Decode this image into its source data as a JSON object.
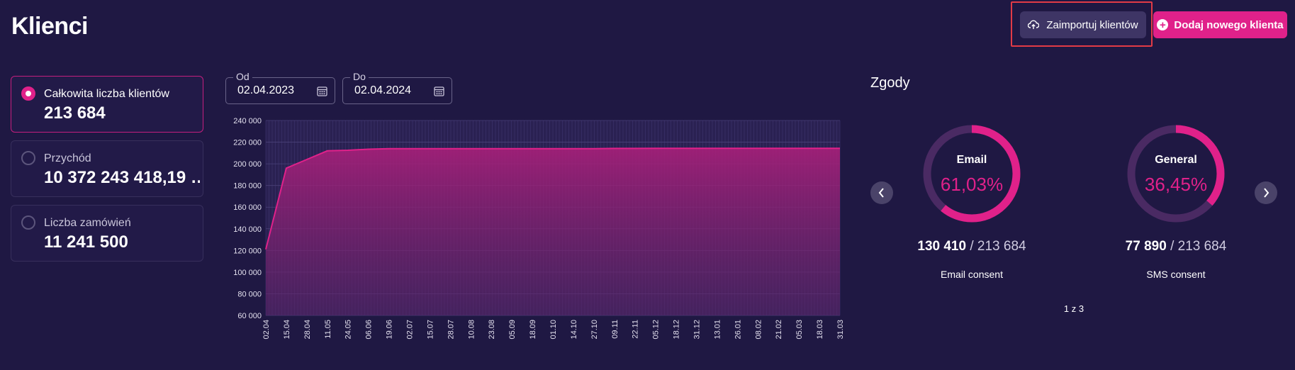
{
  "header": {
    "title": "Klienci",
    "import_label": "Zaimportuj klientów",
    "add_label": "Dodaj nowego klienta"
  },
  "metrics": [
    {
      "label": "Całkowita liczba klientów",
      "value": "213 684",
      "selected": true
    },
    {
      "label": "Przychód",
      "value": "10 372 243 418,19 …",
      "selected": false
    },
    {
      "label": "Liczba zamówień",
      "value": "11 241 500",
      "selected": false
    }
  ],
  "filters": {
    "from_label": "Od",
    "from_value": "02.04.2023",
    "to_label": "Do",
    "to_value": "02.04.2024"
  },
  "chart_data": {
    "type": "area",
    "x": [
      "02.04",
      "15.04",
      "28.04",
      "11.05",
      "24.05",
      "06.06",
      "19.06",
      "02.07",
      "15.07",
      "28.07",
      "10.08",
      "23.08",
      "05.09",
      "18.09",
      "01.10",
      "14.10",
      "27.10",
      "09.11",
      "22.11",
      "05.12",
      "18.12",
      "31.12",
      "13.01",
      "26.01",
      "08.02",
      "21.02",
      "05.03",
      "18.03",
      "31.03"
    ],
    "series": [
      {
        "values": [
          121000,
          196000,
          204000,
          212000,
          212500,
          213500,
          214000,
          214000,
          214000,
          214000,
          214000,
          214000,
          214000,
          214000,
          214000,
          214000,
          214000,
          214200,
          214200,
          214300,
          214300,
          214300,
          214300,
          214300,
          214300,
          214300,
          214300,
          214300,
          214300
        ]
      }
    ],
    "ylim": [
      60000,
      240000
    ],
    "yticks": [
      "60 000",
      "80 000",
      "100 000",
      "120 000",
      "140 000",
      "160 000",
      "180 000",
      "200 000",
      "220 000",
      "240 000"
    ],
    "ytick_values": [
      60000,
      80000,
      100000,
      120000,
      140000,
      160000,
      180000,
      200000,
      220000,
      240000
    ],
    "grid": true,
    "color": "#e0218a"
  },
  "consents": {
    "title": "Zgody",
    "cards": [
      {
        "name": "Email",
        "percent": "61,03%",
        "fraction": 0.6103,
        "count": "130 410",
        "total": "/ 213 684",
        "label": "Email consent"
      },
      {
        "name": "General",
        "percent": "36,45%",
        "fraction": 0.3645,
        "count": "77 890",
        "total": "/ 213 684",
        "label": "SMS consent"
      }
    ],
    "pager": "1 z 3"
  },
  "colors": {
    "background": "#1f1843",
    "accent": "#e0218a",
    "card_border": "#372f5c"
  }
}
